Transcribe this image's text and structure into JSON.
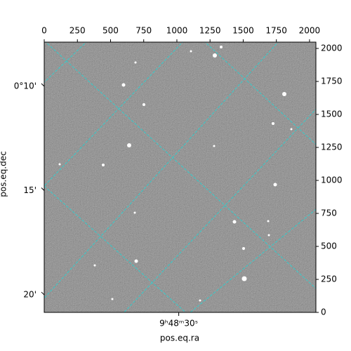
{
  "chart_data": {
    "type": "image",
    "xlabel": "pos.eq.ra",
    "ylabel": "pos.eq.dec",
    "xlim": [
      0,
      2048
    ],
    "ylim": [
      0,
      2048
    ],
    "xticks": [
      0,
      250,
      500,
      750,
      1000,
      1250,
      1500,
      1750,
      2000
    ],
    "yticks": [
      0,
      250,
      500,
      750,
      1000,
      1250,
      1500,
      1750,
      2000
    ],
    "x2lim": [
      24.9,
      35.2
    ],
    "x2ticks": [
      {
        "value": 30,
        "label": "9ʰ48ᵐ30ˢ"
      }
    ],
    "y2lim": [
      7.88,
      20.84
    ],
    "y2ticks": [
      {
        "value": 10,
        "label": "0°10'"
      },
      {
        "value": 15,
        "label": "15'"
      },
      {
        "value": 20,
        "label": "20'"
      }
    ],
    "grid": true,
    "grid_color": "#33cccc"
  }
}
